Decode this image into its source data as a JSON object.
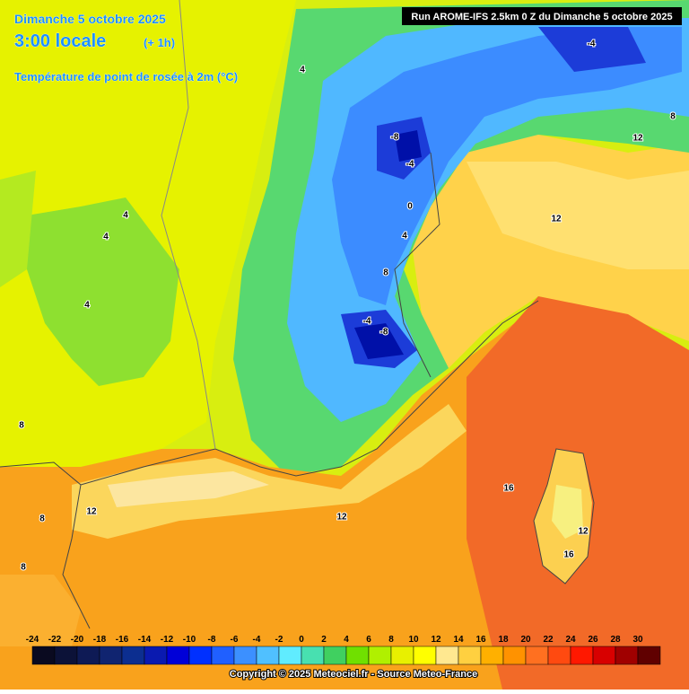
{
  "header": {
    "date": "Dimanche 5 octobre 2025",
    "time": "3:00 locale",
    "offset": "(+ 1h)",
    "subtitle": "Température de point de rosée à 2m (°C)",
    "run": "Run AROME-IFS 2.5km 0 Z du Dimanche 5 octobre 2025"
  },
  "map": {
    "contour_labels": [
      4,
      4,
      4,
      4,
      8,
      8,
      8,
      12,
      12,
      16,
      12,
      16,
      12,
      12,
      8,
      -4,
      -8,
      -4,
      0,
      4,
      8,
      -4,
      -8
    ]
  },
  "colorbar": {
    "labels": [
      -24,
      -22,
      -20,
      -18,
      -16,
      -14,
      -12,
      -10,
      -8,
      -6,
      -4,
      -2,
      0,
      2,
      4,
      6,
      8,
      10,
      12,
      14,
      16,
      18,
      20,
      22,
      24,
      26,
      28,
      30
    ],
    "colors": [
      "#0a0a20",
      "#0c1238",
      "#0e1a55",
      "#102470",
      "#0c2e90",
      "#0a1ab0",
      "#0000d8",
      "#0030ff",
      "#2060ff",
      "#3c90ff",
      "#50c0ff",
      "#60ecff",
      "#48e0b0",
      "#40d060",
      "#70e000",
      "#b0f000",
      "#e8f000",
      "#ffff00",
      "#ffe890",
      "#ffd040",
      "#ffb000",
      "#ff9200",
      "#ff7020",
      "#ff4a10",
      "#ff1800",
      "#d80000",
      "#a00000",
      "#600000"
    ]
  },
  "footer": {
    "copyright": "Copyright © 2025 Meteociel.fr - Source Meteo-France"
  }
}
